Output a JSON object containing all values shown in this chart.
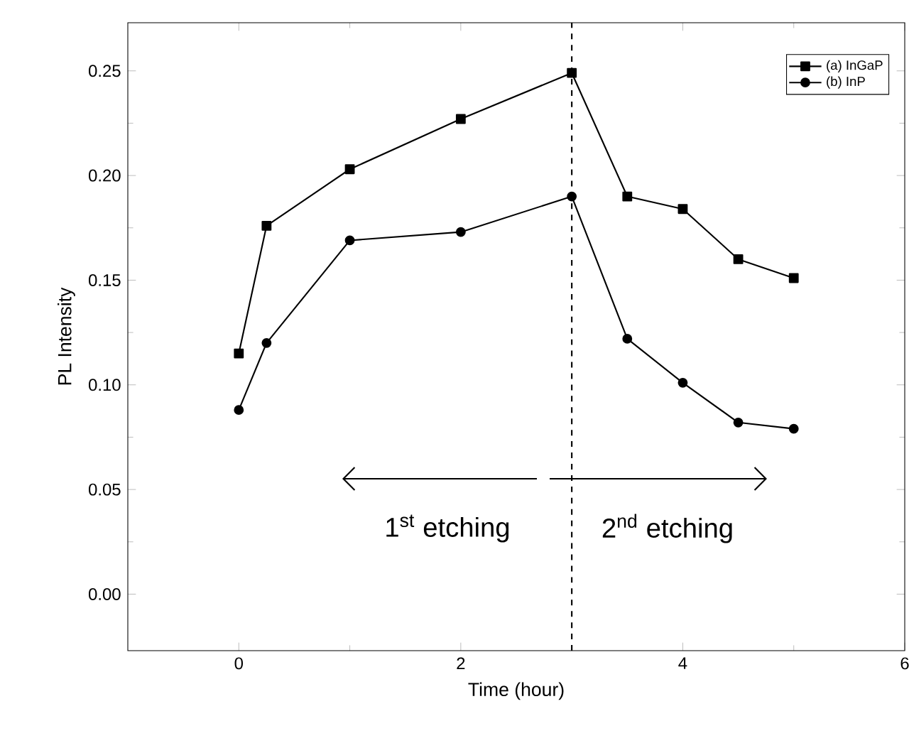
{
  "chart_data": {
    "type": "line",
    "xlabel": "Time (hour)",
    "ylabel": "PL Intensity",
    "xlim": [
      -1,
      6
    ],
    "ylim": [
      -0.027,
      0.273
    ],
    "xticks": [
      0,
      2,
      4,
      6
    ],
    "yticks": [
      {
        "value": 0,
        "label": "0.00"
      },
      {
        "value": 0.05,
        "label": "0.05"
      },
      {
        "value": 0.1,
        "label": "0.10"
      },
      {
        "value": 0.15,
        "label": "0.15"
      },
      {
        "value": 0.2,
        "label": "0.20"
      },
      {
        "value": 0.25,
        "label": "0.25"
      }
    ],
    "x": [
      0,
      0.25,
      1,
      2,
      3,
      3.5,
      4,
      4.5,
      5
    ],
    "series": [
      {
        "name": "(a) InGaP",
        "color": "#000000",
        "marker": "square",
        "values": [
          0.115,
          0.176,
          0.203,
          0.227,
          0.249,
          0.19,
          0.184,
          0.16,
          0.151
        ]
      },
      {
        "name": "(b) InP",
        "color": "#000000",
        "marker": "circle",
        "values": [
          0.088,
          0.12,
          0.169,
          0.173,
          0.19,
          0.122,
          0.101,
          0.082,
          0.079
        ]
      }
    ],
    "ref_lines": [
      {
        "axis": "x",
        "value": 3,
        "line_style": "dashed",
        "color": "#000000"
      }
    ],
    "annotations": [
      "1$^{st}$ etching",
      "2$^{nd}$ etching"
    ],
    "legend": "top right",
    "grid": false,
    "line_style": "solid"
  }
}
